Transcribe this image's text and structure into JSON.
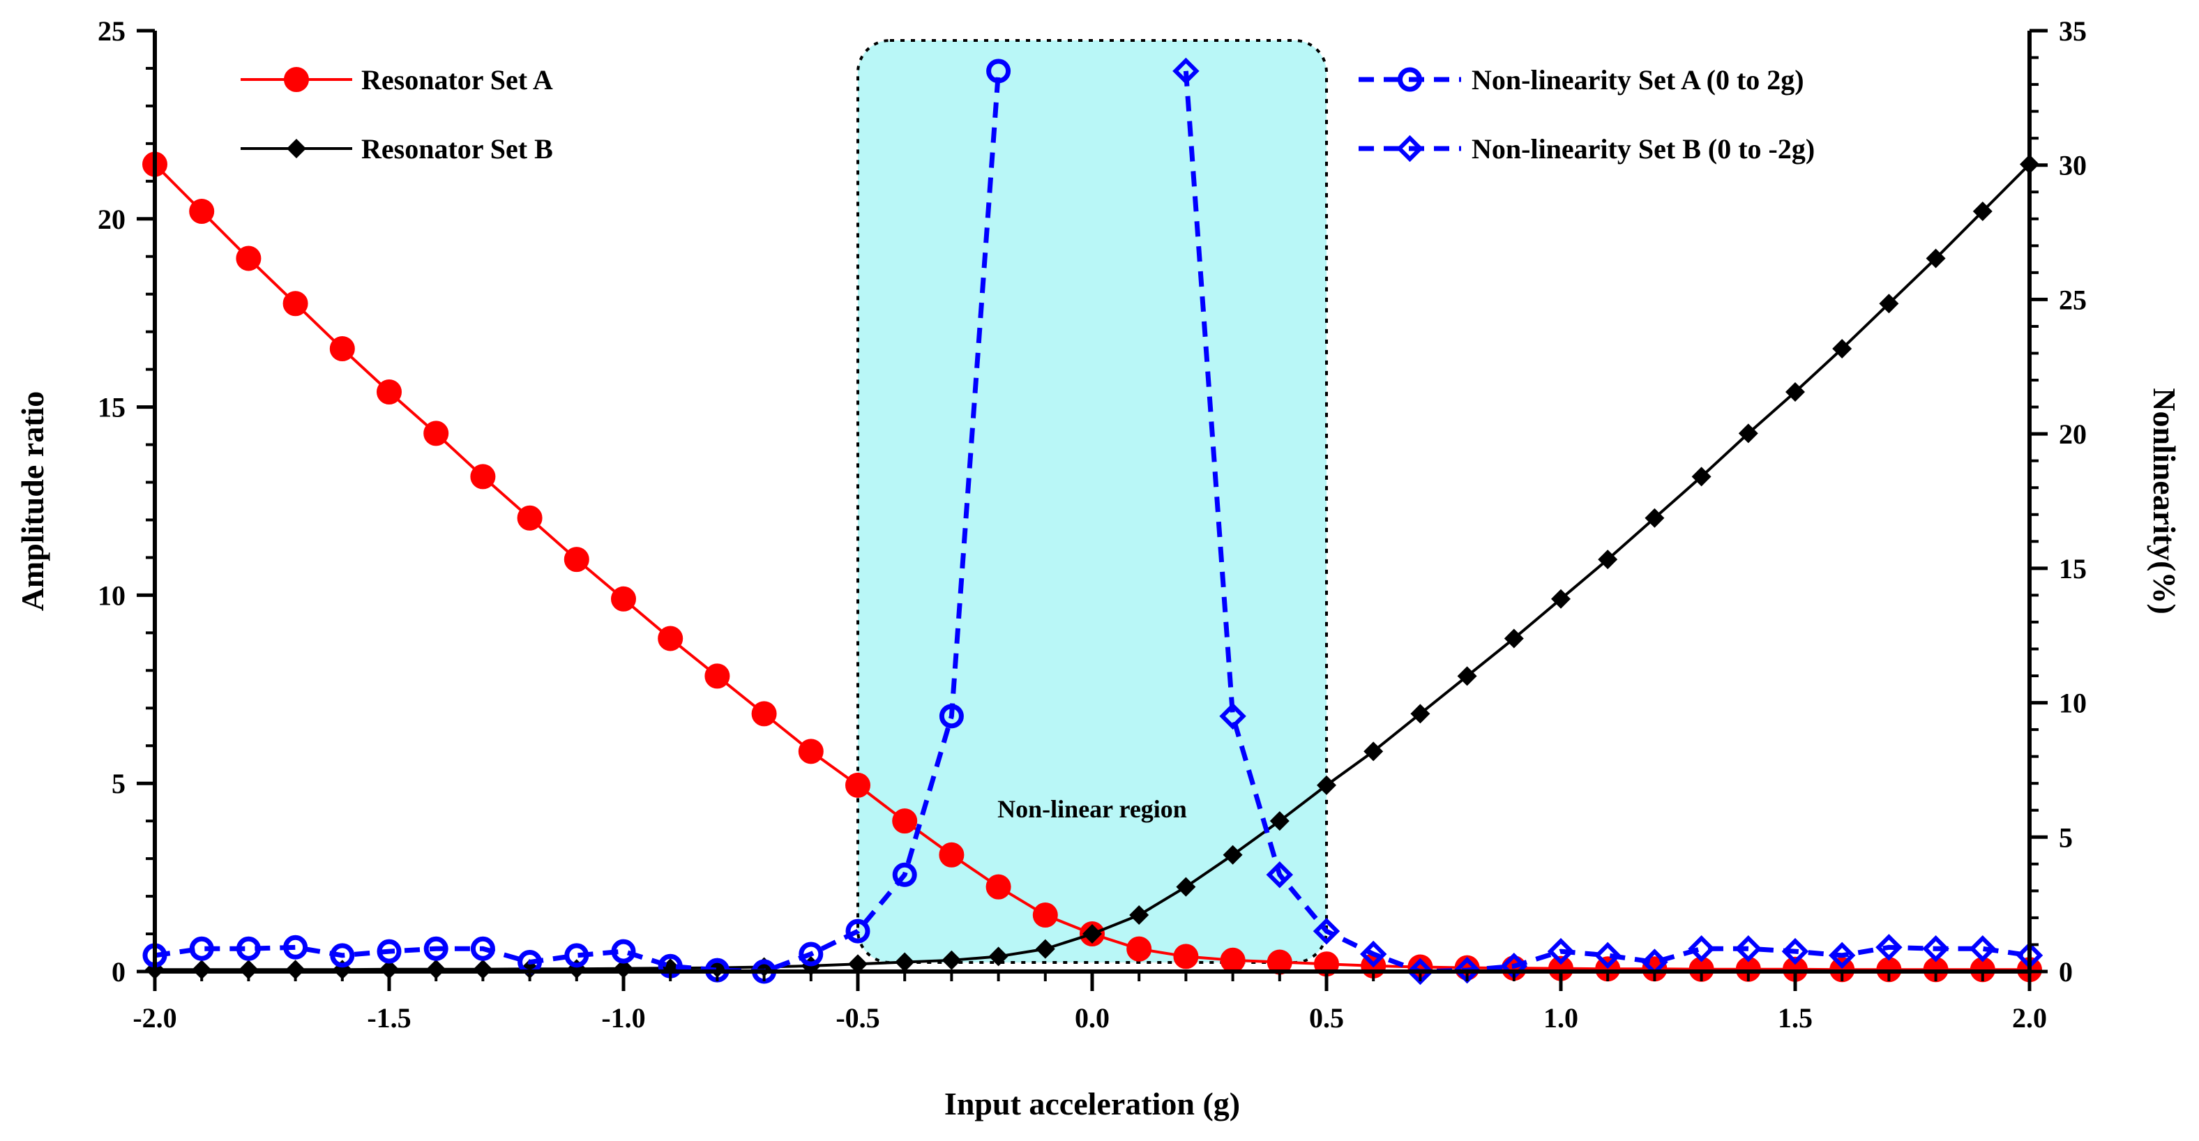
{
  "chart_data": {
    "type": "line",
    "xlabel": "Input acceleration (g)",
    "ylabel": "Amplitude ratio",
    "y2label": "Nonlinearity(%)",
    "xlim": [
      -2.0,
      2.0
    ],
    "ylim": [
      0,
      25
    ],
    "y2lim": [
      0,
      35
    ],
    "grid": false,
    "x_ticks": [
      "-2.0",
      "-1.5",
      "-1.0",
      "-0.5",
      "0.0",
      "0.5",
      "1.0",
      "1.5",
      "2.0"
    ],
    "y_ticks": [
      "0",
      "5",
      "10",
      "15",
      "20",
      "25"
    ],
    "y2_ticks": [
      "0",
      "5",
      "10",
      "15",
      "20",
      "25",
      "30",
      "35"
    ],
    "x": [
      -2.0,
      -1.9,
      -1.8,
      -1.7,
      -1.6,
      -1.5,
      -1.4,
      -1.3,
      -1.2,
      -1.1,
      -1.0,
      -0.9,
      -0.8,
      -0.7,
      -0.6,
      -0.5,
      -0.4,
      -0.3,
      -0.2,
      -0.1,
      0.0,
      0.1,
      0.2,
      0.3,
      0.4,
      0.5,
      0.6,
      0.7,
      0.8,
      0.9,
      1.0,
      1.1,
      1.2,
      1.3,
      1.4,
      1.5,
      1.6,
      1.7,
      1.8,
      1.9,
      2.0
    ],
    "series": [
      {
        "name": "Resonator Set A",
        "axis": "left",
        "color": "#ff0000",
        "marker": "circle",
        "values": [
          21.45,
          20.2,
          18.95,
          17.75,
          16.55,
          15.4,
          14.3,
          13.15,
          12.05,
          10.95,
          9.9,
          8.85,
          7.85,
          6.85,
          5.85,
          4.95,
          4.0,
          3.1,
          2.25,
          1.5,
          1.0,
          0.6,
          0.4,
          0.3,
          0.25,
          0.2,
          0.15,
          0.12,
          0.1,
          0.09,
          0.08,
          0.07,
          0.07,
          0.06,
          0.06,
          0.06,
          0.05,
          0.05,
          0.05,
          0.05,
          0.05
        ]
      },
      {
        "name": "Resonator Set B",
        "axis": "left",
        "color": "#000000",
        "marker": "diamond",
        "values": [
          0.05,
          0.05,
          0.05,
          0.05,
          0.05,
          0.06,
          0.06,
          0.06,
          0.07,
          0.07,
          0.08,
          0.09,
          0.1,
          0.12,
          0.15,
          0.2,
          0.25,
          0.3,
          0.4,
          0.6,
          1.0,
          1.5,
          2.25,
          3.1,
          4.0,
          4.95,
          5.85,
          6.85,
          7.85,
          8.85,
          9.9,
          10.95,
          12.05,
          13.15,
          14.3,
          15.4,
          16.55,
          17.75,
          18.95,
          20.2,
          21.45
        ]
      },
      {
        "name": "Non-linearity Set A (0 to 2g)",
        "axis": "right",
        "color": "#0000ff",
        "marker": "open-circle",
        "dashed": true,
        "x": [
          -2.0,
          -1.9,
          -1.8,
          -1.7,
          -1.6,
          -1.5,
          -1.4,
          -1.3,
          -1.2,
          -1.1,
          -1.0,
          -0.9,
          -0.8,
          -0.7,
          -0.6,
          -0.5,
          -0.4,
          -0.3,
          -0.2
        ],
        "values": [
          0.6,
          0.85,
          0.85,
          0.9,
          0.6,
          0.75,
          0.85,
          0.85,
          0.35,
          0.6,
          0.75,
          0.2,
          0.05,
          0.0,
          0.65,
          1.5,
          3.6,
          9.5,
          33.5
        ]
      },
      {
        "name": "Non-linearity Set B (0 to -2g)",
        "axis": "right",
        "color": "#0000ff",
        "marker": "open-diamond",
        "dashed": true,
        "x": [
          0.2,
          0.3,
          0.4,
          0.5,
          0.6,
          0.7,
          0.8,
          0.9,
          1.0,
          1.1,
          1.2,
          1.3,
          1.4,
          1.5,
          1.6,
          1.7,
          1.8,
          1.9,
          2.0
        ],
        "values": [
          33.5,
          9.5,
          3.6,
          1.5,
          0.65,
          0.0,
          0.05,
          0.2,
          0.75,
          0.6,
          0.35,
          0.85,
          0.85,
          0.75,
          0.6,
          0.9,
          0.85,
          0.85,
          0.6
        ]
      }
    ],
    "annotations": [
      {
        "text": "Non-linear region",
        "x_range": [
          -0.5,
          0.5
        ],
        "color": "#b9f7f7"
      }
    ],
    "legend": "top-left and top-right"
  }
}
